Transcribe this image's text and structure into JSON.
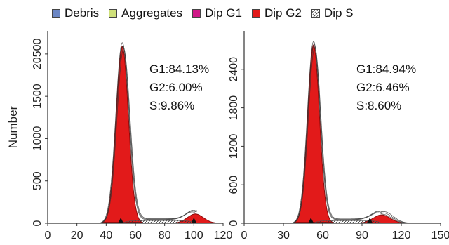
{
  "legend": [
    {
      "label": "Debris",
      "color": "#6b86c4",
      "pattern": "solid"
    },
    {
      "label": "Aggregates",
      "color": "#cfe07a",
      "pattern": "solid"
    },
    {
      "label": "Dip G1",
      "color": "#d01888",
      "pattern": "solid"
    },
    {
      "label": "Dip G2",
      "color": "#e21a1a",
      "pattern": "solid"
    },
    {
      "label": "Dip S",
      "color": "#ffffff",
      "pattern": "hatch"
    }
  ],
  "ylabel": "Number",
  "chart_data": [
    {
      "type": "area",
      "xlim": [
        0,
        120
      ],
      "ylim": [
        0,
        25000
      ],
      "xticks": [
        0,
        20,
        40,
        60,
        80,
        100,
        120
      ],
      "yticks": [
        0,
        500,
        1000,
        1500,
        20500
      ],
      "stats": [
        "G1:84.13%",
        "G2:6.00%",
        "S:9.86%"
      ],
      "markers": [
        50,
        100
      ],
      "g1": {
        "center": 51,
        "width": 4.2,
        "height": 23000
      },
      "g2": {
        "center": 101,
        "width": 5.5,
        "height": 1200
      },
      "s_level": 350,
      "grid": false
    },
    {
      "type": "area",
      "xlim": [
        0,
        150
      ],
      "ylim": [
        0,
        3000
      ],
      "xticks": [
        0,
        30,
        60,
        90,
        120,
        150
      ],
      "yticks": [
        0,
        600,
        1200,
        1800,
        2400
      ],
      "stats": [
        "G1:84.94%",
        "G2:6.46%",
        "S:8.60%"
      ],
      "markers": [
        51,
        96
      ],
      "g1": {
        "center": 53,
        "width": 4.5,
        "height": 2780
      },
      "g2": {
        "center": 105,
        "width": 6.5,
        "height": 130
      },
      "s_level": 40,
      "grid": false
    }
  ]
}
